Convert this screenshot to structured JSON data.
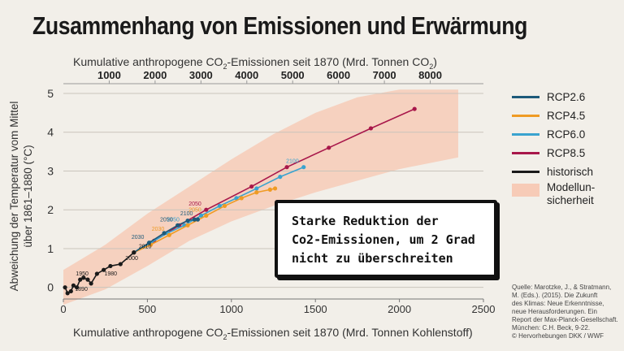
{
  "title": "Zusammenhang von Emissionen und Erwärmung",
  "top_axis": {
    "label_prefix": "Kumulative anthropogene CO",
    "label_mid": "-Emissionen seit 1870 (Mrd. Tonnen CO",
    "label_suffix": ")",
    "sub": "2",
    "ticks": [
      1000,
      2000,
      3000,
      4000,
      5000,
      6000,
      7000,
      8000
    ]
  },
  "bottom_axis": {
    "label_prefix": "Kumulative anthropogene CO",
    "label_suffix": "-Emissionen seit 1870 (Mrd. Tonnen Kohlenstoff)",
    "sub": "2"
  },
  "legend": {
    "items": [
      {
        "label": "RCP2.6",
        "color": "#1d5a7a"
      },
      {
        "label": "RCP4.5",
        "color": "#ef9b24"
      },
      {
        "label": "RCP6.0",
        "color": "#3aa3cf"
      },
      {
        "label": "RCP8.5",
        "color": "#a8174a"
      },
      {
        "label": "historisch",
        "color": "#1a1a1a"
      }
    ],
    "band_label": "Modellun-sicherheit"
  },
  "callout": {
    "line1": "Starke Reduktion der",
    "line2": "Co2-Emissionen, um 2 Grad",
    "line3": "nicht zu überschreiten"
  },
  "source": {
    "line1": "Quelle: Marotzke, J., & Stratmann,",
    "line2": "M. (Eds.). (2015). Die Zukunft",
    "line3": "des Klimas: Neue Erkenntnisse,",
    "line4": "neue Herausforderungen. Ein",
    "line5": "Report der Max-Planck-Gesellschaft.",
    "line6": "München: C.H. Beck, 9-22.",
    "line7": "© Hervorhebungen DKK / WWF"
  },
  "chart_data": {
    "type": "line",
    "title": "Zusammenhang von Emissionen und Erwärmung",
    "xlabel": "Kumulative anthropogene CO2-Emissionen seit 1870 (Mrd. Tonnen Kohlenstoff)",
    "x2label": "Kumulative anthropogene CO2-Emissionen seit 1870 (Mrd. Tonnen CO2)",
    "ylabel": "Abweichung der Temperatur vom Mittel über 1861–1880 (°C)",
    "xlim": [
      0,
      2500
    ],
    "ylim": [
      -0.3,
      5
    ],
    "x_ticks": [
      0,
      500,
      1000,
      1500,
      2000,
      2500
    ],
    "y_ticks": [
      0,
      1,
      2,
      3,
      4,
      5
    ],
    "grid": "horizontal",
    "legend_position": "right",
    "series": [
      {
        "name": "historisch",
        "color": "#1a1a1a",
        "x": [
          10,
          25,
          45,
          60,
          80,
          100,
          120,
          145,
          165,
          200,
          240,
          280,
          340,
          420
        ],
        "y": [
          0.0,
          -0.15,
          -0.1,
          0.05,
          0.0,
          0.2,
          0.25,
          0.2,
          0.1,
          0.35,
          0.45,
          0.55,
          0.6,
          0.9
        ],
        "labels": [
          {
            "x": 45,
            "y": 0.2,
            "text": "1950"
          },
          {
            "x": 40,
            "y": -0.2,
            "text": "1890"
          },
          {
            "x": 215,
            "y": 0.2,
            "text": "1980"
          },
          {
            "x": 340,
            "y": 0.6,
            "text": "2000"
          },
          {
            "x": 420,
            "y": 0.9,
            "text": "2010"
          }
        ]
      },
      {
        "name": "RCP2.6",
        "color": "#1d5a7a",
        "x": [
          420,
          510,
          600,
          680,
          740,
          780,
          800
        ],
        "y": [
          0.9,
          1.15,
          1.4,
          1.6,
          1.72,
          1.75,
          1.75
        ],
        "labels": [
          {
            "x": 510,
            "y": 1.15,
            "text": "2030"
          },
          {
            "x": 680,
            "y": 1.6,
            "text": "2050"
          },
          {
            "x": 800,
            "y": 1.75,
            "text": "2100"
          }
        ]
      },
      {
        "name": "RCP4.5",
        "color": "#ef9b24",
        "x": [
          420,
          520,
          630,
          740,
          850,
          960,
          1060,
          1150,
          1230,
          1260
        ],
        "y": [
          0.9,
          1.1,
          1.35,
          1.6,
          1.85,
          2.1,
          2.3,
          2.45,
          2.52,
          2.55
        ],
        "labels": [
          {
            "x": 630,
            "y": 1.35,
            "text": "2030"
          },
          {
            "x": 850,
            "y": 1.85,
            "text": "2050"
          }
        ]
      },
      {
        "name": "RCP6.0",
        "color": "#3aa3cf",
        "x": [
          420,
          520,
          620,
          720,
          820,
          930,
          1030,
          1150,
          1290,
          1430
        ],
        "y": [
          0.9,
          1.15,
          1.4,
          1.6,
          1.85,
          2.1,
          2.3,
          2.55,
          2.85,
          3.1
        ],
        "labels": [
          {
            "x": 720,
            "y": 1.6,
            "text": "2050"
          },
          {
            "x": 1430,
            "y": 3.1,
            "text": "2100"
          }
        ]
      },
      {
        "name": "RCP8.5",
        "color": "#a8174a",
        "x": [
          420,
          540,
          690,
          850,
          1120,
          1330,
          1580,
          1830,
          2090
        ],
        "y": [
          0.9,
          1.2,
          1.6,
          2.0,
          2.6,
          3.1,
          3.6,
          4.1,
          4.6
        ],
        "labels": [
          {
            "x": 850,
            "y": 2.0,
            "text": "2050"
          }
        ]
      }
    ],
    "uncertainty_band": {
      "name": "Modellunsicherheit",
      "x": [
        0,
        250,
        500,
        750,
        1000,
        1250,
        1500,
        1750,
        2000,
        2350
      ],
      "upper": [
        0.45,
        1.1,
        1.9,
        2.6,
        3.3,
        3.95,
        4.5,
        4.9,
        5.1,
        5.1
      ],
      "lower": [
        -0.45,
        -0.05,
        0.55,
        1.2,
        1.7,
        2.1,
        2.45,
        2.75,
        3.05,
        3.35
      ]
    }
  }
}
